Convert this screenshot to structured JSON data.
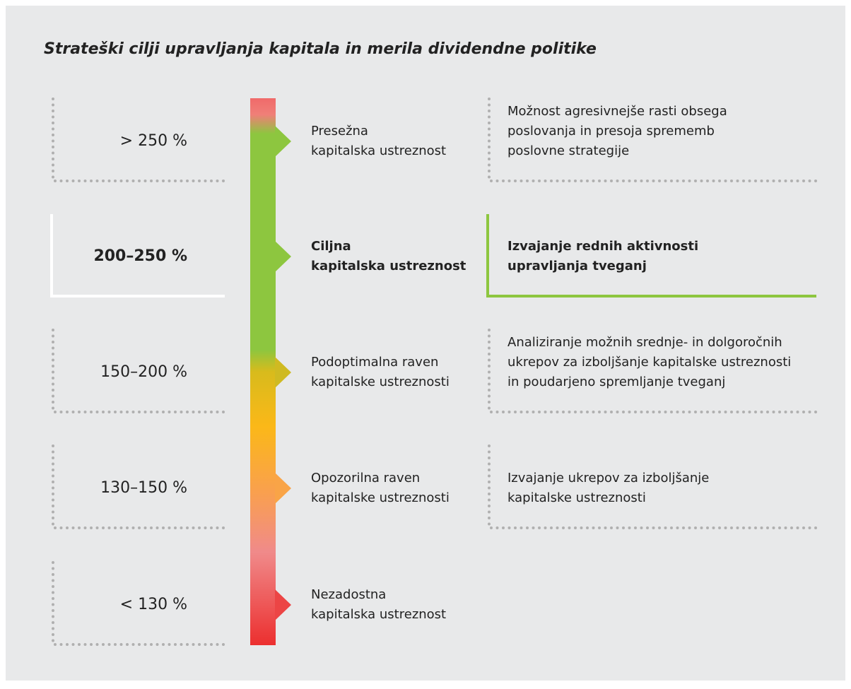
{
  "title": "Strateški cilji upravljanja kapitala in merila dividendne politike",
  "rows": [
    {
      "range": "> 250 %",
      "level": [
        "Presežna",
        "kapitalska ustreznost"
      ],
      "action": [
        "Možnost agresivnejše rasti obsega",
        "poslovanja in presoja sprememb",
        "poslovne strategije"
      ]
    },
    {
      "range": "200–250 %",
      "level": [
        "Ciljna",
        "kapitalska ustreznost"
      ],
      "action": [
        "Izvajanje rednih aktivnosti",
        "upravljanja tveganj"
      ]
    },
    {
      "range": "150–200 %",
      "level": [
        "Podoptimalna raven",
        "kapitalske ustreznosti"
      ],
      "action": [
        "Analiziranje možnih srednje- in dolgoročnih",
        "ukrepov za izboljšanje kapitalske ustreznosti",
        "in poudarjeno spremljanje tveganj"
      ]
    },
    {
      "range": "130–150 %",
      "level": [
        "Opozorilna raven",
        "kapitalske ustreznosti"
      ],
      "action": [
        "Izvajanje ukrepov za izboljšanje",
        "kapitalske ustreznosti"
      ]
    },
    {
      "range": "< 130 %",
      "level": [
        "Nezadostna",
        "kapitalska ustreznost"
      ],
      "action": []
    }
  ]
}
